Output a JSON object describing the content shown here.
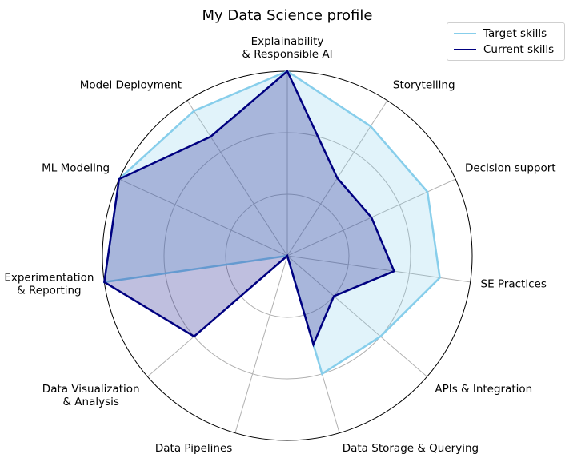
{
  "chart_data": {
    "type": "radar",
    "title": "My Data Science profile",
    "categories": [
      "Explainability\n& Responsible AI",
      "Storytelling",
      "Decision support",
      "SE Practices",
      "APIs & Integration",
      "Data Storage & Querying",
      "Data Pipelines",
      "Data Visualization\n& Analysis",
      "Experimentation\n& Reporting",
      "ML Modeling",
      "Model Deployment"
    ],
    "rlim": [
      0,
      3
    ],
    "grid": true,
    "legend_position": "top-right",
    "series": [
      {
        "name": "Target skills",
        "color": "#87ceeb",
        "values": [
          3,
          2.5,
          2.5,
          2.5,
          2,
          2,
          0,
          0,
          3,
          3,
          2.8
        ]
      },
      {
        "name": "Current skills",
        "color": "#000080",
        "values": [
          3,
          1.5,
          1.5,
          1.75,
          1,
          1.5,
          0,
          2,
          3,
          3,
          2.3
        ]
      }
    ]
  }
}
